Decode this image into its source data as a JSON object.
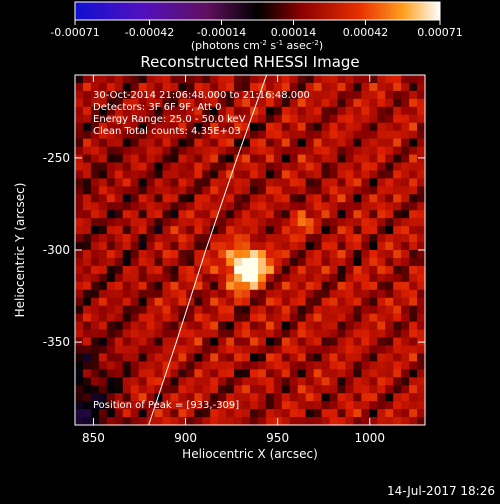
{
  "chart_data": {
    "type": "heatmap",
    "title": "Reconstructed RHESSI Image",
    "xlabel": "Heliocentric X (arcsec)",
    "ylabel": "Heliocentric Y (arcsec)",
    "xlim": [
      840,
      1030
    ],
    "ylim": [
      -395,
      -205
    ],
    "x_ticks": [
      "850",
      "900",
      "950",
      "1000"
    ],
    "x_tick_values": [
      850,
      900,
      950,
      1000
    ],
    "y_ticks": [
      "-250",
      "-300",
      "-350"
    ],
    "y_tick_values": [
      -250,
      -300,
      -350
    ],
    "colorbar": {
      "range": [
        -0.00071,
        0.00071
      ],
      "ticks": [
        "-0.00071",
        "-0.00042",
        "-0.00014",
        "0.00014",
        "0.00042",
        "0.00071"
      ],
      "tick_values": [
        -0.00071,
        -0.00042,
        -0.00014,
        0.00014,
        0.00042,
        0.00071
      ],
      "unit_base": "(photons cm",
      "unit_sup1": "-2",
      "unit_mid": " s",
      "unit_sup2": "-1",
      "unit_mid2": " asec",
      "unit_sup3": "-2",
      "unit_end": ")"
    },
    "annotations": {
      "time": "30-Oct-2014 21:06:48.000 to 21:16:48.000",
      "detectors": "Detectors: 3F 6F 9F, Att 0",
      "energy": "Energy Range: 25.0 - 50.0 keV",
      "clean": "Clean     Total counts: 4.35E+03",
      "peak": "Position of Peak = [933,-309]"
    },
    "peak": {
      "x": 933,
      "y": -309
    },
    "solar_limb": [
      [
        880,
        -395
      ],
      [
        895,
        -350
      ],
      [
        911,
        -300
      ],
      [
        928,
        -250
      ],
      [
        944,
        -205
      ]
    ],
    "colors": {
      "background": "#000000",
      "limb": "#ffffff",
      "text": "#ffffff"
    }
  },
  "footer": {
    "date": "14-Jul-2017 18:26"
  }
}
